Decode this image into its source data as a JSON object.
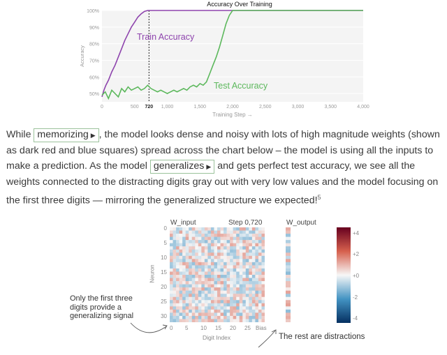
{
  "chart_data": {
    "type": "line",
    "title": "Accuracy Over Training",
    "xlabel": "Training Step →",
    "ylabel": "Accuracy",
    "xlim": [
      0,
      4000
    ],
    "ylim": [
      45,
      100
    ],
    "xticks": [
      "0",
      "500",
      "720",
      "1,000",
      "1,500",
      "2,000",
      "2,500",
      "3,000",
      "3,500",
      "4,000"
    ],
    "yticks": [
      "50%",
      "60%",
      "70%",
      "80%",
      "90%",
      "100%"
    ],
    "marker": {
      "x": 720,
      "label": "720"
    },
    "series": [
      {
        "name": "Train Accuracy",
        "color": "#8e44ad",
        "x": [
          0,
          30,
          60,
          100,
          150,
          200,
          250,
          300,
          350,
          400,
          450,
          500,
          550,
          600,
          650,
          700,
          720,
          800,
          1000,
          2000,
          3000,
          4000
        ],
        "y": [
          48,
          52,
          55,
          58,
          63,
          67,
          72,
          77,
          82,
          86,
          90,
          93,
          96,
          98,
          99.4,
          100,
          100,
          100,
          100,
          100,
          100,
          100
        ]
      },
      {
        "name": "Test Accuracy",
        "color": "#5cb85c",
        "x": [
          0,
          50,
          100,
          150,
          200,
          250,
          300,
          350,
          400,
          450,
          500,
          550,
          600,
          650,
          700,
          750,
          800,
          850,
          900,
          950,
          1000,
          1050,
          1100,
          1150,
          1200,
          1250,
          1300,
          1350,
          1400,
          1450,
          1500,
          1550,
          1600,
          1650,
          1700,
          1750,
          1800,
          1850,
          1900,
          1950,
          2000,
          2100,
          2500,
          3000,
          4000
        ],
        "y": [
          49,
          51,
          47,
          52,
          50,
          48,
          53,
          51,
          54,
          52,
          53,
          54,
          52,
          53,
          55,
          53,
          52,
          51,
          52,
          51,
          50,
          51,
          52,
          51,
          52,
          53,
          52,
          54,
          55,
          54,
          56,
          55,
          57,
          62,
          67,
          72,
          78,
          85,
          92,
          97,
          100,
          100,
          100,
          100,
          100
        ]
      }
    ]
  },
  "paragraph": {
    "t1": "While ",
    "btn1": "memorizing",
    "t2": ", the model looks dense and noisy with lots of high magnitude weights (shown as dark red and blue squares) spread across the chart below – the model is using all the inputs to make a prediction. As the model ",
    "btn2": "generalizes",
    "t3": " and gets perfect test accuracy, we see all the weights connected to the distracting digits gray out with very low values and the model focusing on the first three digits — mirroring the generalized structure we expected!",
    "footnote": "5",
    "play_icon": "play-triangle-icon"
  },
  "heatmap": {
    "w_input_label": "W_input",
    "step_label": "Step 0,720",
    "w_output_label": "W_output",
    "y_axis_label": "Neuron",
    "x_axis_label": "Digit Index",
    "y_ticks": [
      "0",
      "5",
      "10",
      "15",
      "20",
      "25",
      "30"
    ],
    "x_ticks": [
      "0",
      "5",
      "10",
      "15",
      "20",
      "25",
      "Bias"
    ],
    "colorbar_ticks": [
      "+4",
      "+2",
      "+0",
      "-2",
      "-4"
    ],
    "colorbar_colors": [
      "#67001f",
      "#d6604d",
      "#f7f7f7",
      "#4393c3",
      "#053061"
    ],
    "annotation_left": [
      "Only the first three",
      "digits provide a",
      "generalizing signal"
    ],
    "annotation_right": "The rest are distractions"
  }
}
